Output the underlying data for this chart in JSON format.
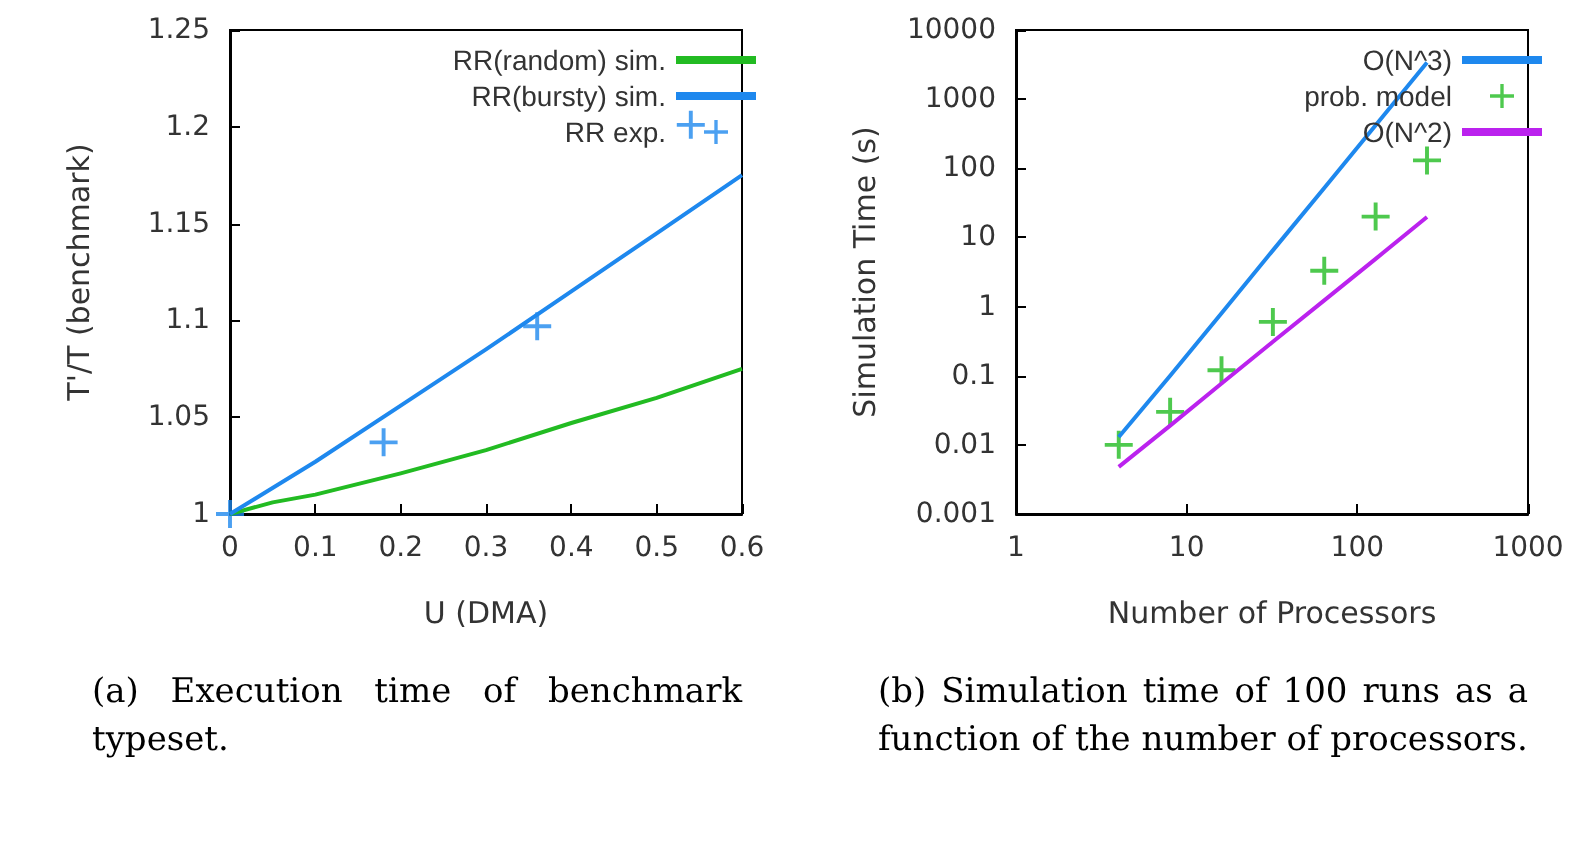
{
  "chart_data": [
    {
      "type": "line",
      "xlabel": "U (DMA)",
      "ylabel": "T'/T (benchmark)",
      "xlim": [
        0,
        0.6
      ],
      "ylim": [
        1,
        1.25
      ],
      "xticks": [
        0,
        0.1,
        0.2,
        0.3,
        0.4,
        0.5,
        0.6
      ],
      "yticks": [
        1,
        1.05,
        1.1,
        1.15,
        1.2,
        1.25
      ],
      "legend": "top right",
      "grid": false,
      "annotations": [
        "(a) Execution time of benchmark typeset."
      ],
      "series": [
        {
          "name": "RR(random) sim.",
          "color": "#22bb22",
          "marker": "none",
          "x": [
            0,
            0.05,
            0.1,
            0.2,
            0.3,
            0.4,
            0.5,
            0.6
          ],
          "values": [
            1,
            1.006,
            1.01,
            1.021,
            1.033,
            1.047,
            1.06,
            1.075
          ]
        },
        {
          "name": "RR(bursty) sim.",
          "color": "#1e88ee",
          "marker": "none",
          "x": [
            0,
            0.1,
            0.2,
            0.3,
            0.4,
            0.5,
            0.6
          ],
          "values": [
            1,
            1.027,
            1.056,
            1.085,
            1.115,
            1.145,
            1.175
          ]
        },
        {
          "name": "RR exp.",
          "type": "scatter",
          "color": "#1e88ee",
          "marker": "cross",
          "x": [
            0,
            0.18,
            0.36,
            0.54
          ],
          "values": [
            1,
            1.037,
            1.097,
            1.201
          ]
        }
      ]
    },
    {
      "type": "line",
      "xlabel": "Number of Processors",
      "ylabel": "Simulation Time (s)",
      "xlim": [
        1,
        1000
      ],
      "ylim": [
        0.001,
        10000
      ],
      "xticks": [
        1,
        10,
        100,
        1000
      ],
      "yticks": [
        0.001,
        0.01,
        0.1,
        1,
        10,
        100,
        1000,
        10000
      ],
      "log": "xy",
      "legend": "top right",
      "grid": false,
      "annotations": [
        "(b) Simulation time of 100 runs as a function of the number of processors."
      ],
      "series": [
        {
          "name": "O(N^3)",
          "color": "#1e88ee",
          "marker": "none",
          "x": [
            4,
            8,
            16,
            32,
            64,
            128,
            256
          ],
          "values": [
            0.013,
            0.1,
            0.8,
            6.5,
            52,
            420,
            3400
          ]
        },
        {
          "name": "prob. model",
          "type": "scatter",
          "color": "#22bb22",
          "marker": "cross",
          "x": [
            4,
            8,
            16,
            32,
            64,
            128,
            256
          ],
          "values": [
            0.01,
            0.03,
            0.12,
            0.6,
            3.3,
            20,
            130
          ]
        },
        {
          "name": "O(N^2)",
          "color": "#bb22ee",
          "marker": "none",
          "x": [
            4,
            8,
            16,
            32,
            64,
            128,
            256
          ],
          "values": [
            0.0048,
            0.019,
            0.077,
            0.31,
            1.23,
            4.9,
            19.7
          ]
        }
      ]
    }
  ]
}
